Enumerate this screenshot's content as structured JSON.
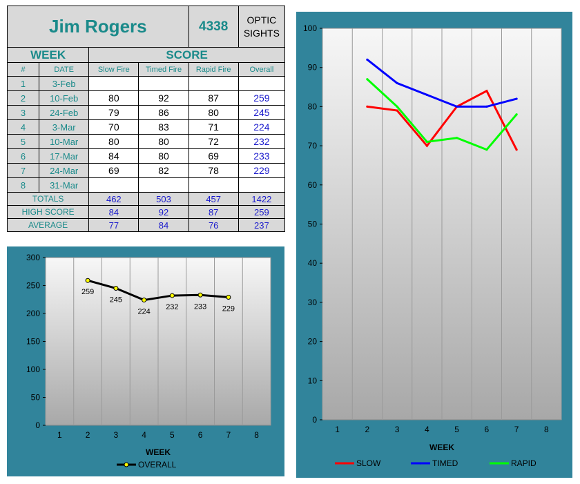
{
  "scorecard": {
    "name": "Jim Rogers",
    "id_number": "4338",
    "category": [
      "OPTIC",
      "SIGHTS"
    ],
    "section_week": "WEEK",
    "section_score": "SCORE",
    "columns": [
      "#",
      "DATE",
      "Slow Fire",
      "Timed Fire",
      "Rapid Fire",
      "Overall"
    ],
    "rows": [
      {
        "num": "1",
        "date": "3-Feb",
        "slow": "",
        "timed": "",
        "rapid": "",
        "overall": ""
      },
      {
        "num": "2",
        "date": "10-Feb",
        "slow": "80",
        "timed": "92",
        "rapid": "87",
        "overall": "259"
      },
      {
        "num": "3",
        "date": "24-Feb",
        "slow": "79",
        "timed": "86",
        "rapid": "80",
        "overall": "245"
      },
      {
        "num": "4",
        "date": "3-Mar",
        "slow": "70",
        "timed": "83",
        "rapid": "71",
        "overall": "224"
      },
      {
        "num": "5",
        "date": "10-Mar",
        "slow": "80",
        "timed": "80",
        "rapid": "72",
        "overall": "232"
      },
      {
        "num": "6",
        "date": "17-Mar",
        "slow": "84",
        "timed": "80",
        "rapid": "69",
        "overall": "233"
      },
      {
        "num": "7",
        "date": "24-Mar",
        "slow": "69",
        "timed": "82",
        "rapid": "78",
        "overall": "229"
      },
      {
        "num": "8",
        "date": "31-Mar",
        "slow": "",
        "timed": "",
        "rapid": "",
        "overall": ""
      }
    ],
    "summary": [
      {
        "label": "TOTALS",
        "slow": "462",
        "timed": "503",
        "rapid": "457",
        "overall": "1422"
      },
      {
        "label": "HIGH SCORE",
        "slow": "84",
        "timed": "92",
        "rapid": "87",
        "overall": "259"
      },
      {
        "label": "AVERAGE",
        "slow": "77",
        "timed": "84",
        "rapid": "76",
        "overall": "237"
      }
    ]
  },
  "colors": {
    "panel": "#31849b",
    "accent_text": "#1a8a8a",
    "value_blue": "#1a1acc",
    "slow": "#ff0000",
    "timed": "#0000ff",
    "rapid": "#00ff00",
    "overall": "#000000",
    "marker_fill": "#ffff00"
  },
  "chart_data": [
    {
      "type": "line",
      "x": [
        1,
        2,
        3,
        4,
        5,
        6,
        7,
        8
      ],
      "series": [
        {
          "name": "OVERALL",
          "x": [
            2,
            3,
            4,
            5,
            6,
            7
          ],
          "values": [
            259,
            245,
            224,
            232,
            233,
            229
          ]
        }
      ],
      "data_labels": [
        "259",
        "245",
        "224",
        "232",
        "233",
        "229"
      ],
      "xlabel": "WEEK",
      "ylabel": "",
      "ylim": [
        0,
        300
      ],
      "yticks": [
        0,
        50,
        100,
        150,
        200,
        250,
        300
      ],
      "grid": true,
      "legend": "bottom"
    },
    {
      "type": "line",
      "x": [
        1,
        2,
        3,
        4,
        5,
        6,
        7,
        8
      ],
      "series": [
        {
          "name": "SLOW",
          "x": [
            2,
            3,
            4,
            5,
            6,
            7
          ],
          "values": [
            80,
            79,
            70,
            80,
            84,
            69
          ]
        },
        {
          "name": "TIMED",
          "x": [
            2,
            3,
            4,
            5,
            6,
            7
          ],
          "values": [
            92,
            86,
            83,
            80,
            80,
            82
          ]
        },
        {
          "name": "RAPID",
          "x": [
            2,
            3,
            4,
            5,
            6,
            7
          ],
          "values": [
            87,
            80,
            71,
            72,
            69,
            78
          ]
        }
      ],
      "xlabel": "WEEK",
      "ylabel": "",
      "ylim": [
        0,
        100
      ],
      "yticks": [
        0,
        10,
        20,
        30,
        40,
        50,
        60,
        70,
        80,
        90,
        100
      ],
      "grid": true,
      "legend": "bottom"
    }
  ]
}
